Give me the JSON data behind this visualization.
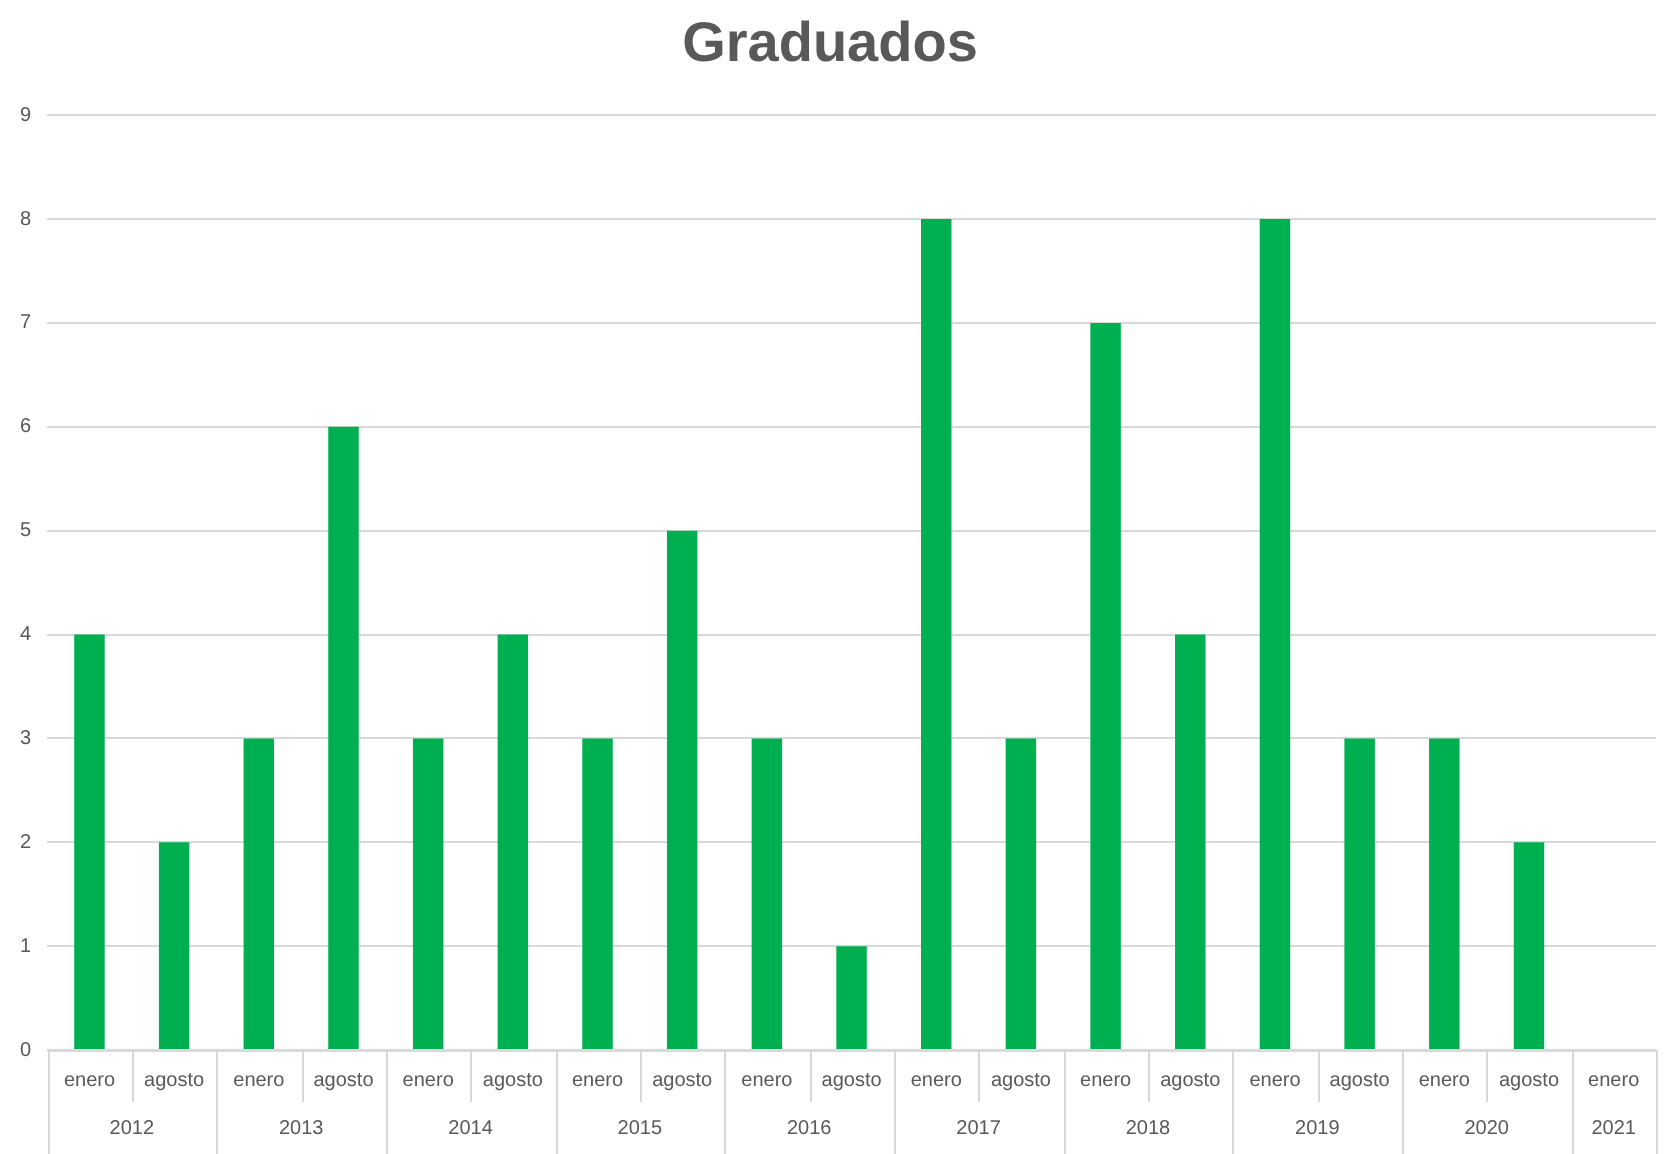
{
  "chart_data": {
    "type": "bar",
    "title": "Graduados",
    "categories": [
      "enero",
      "agosto",
      "enero",
      "agosto",
      "enero",
      "agosto",
      "enero",
      "agosto",
      "enero",
      "agosto",
      "enero",
      "agosto",
      "enero",
      "agosto",
      "enero",
      "agosto",
      "enero",
      "agosto",
      "enero"
    ],
    "values": [
      4,
      2,
      3,
      6,
      3,
      4,
      3,
      5,
      3,
      1,
      8,
      3,
      7,
      4,
      8,
      3,
      3,
      2,
      0
    ],
    "color": "#00b050",
    "ylim": [
      0,
      9
    ],
    "yticks": [
      0,
      1,
      2,
      3,
      4,
      5,
      6,
      7,
      8,
      9
    ],
    "grid": "y",
    "legend": false,
    "annotations": [
      "2012",
      "2013",
      "2014",
      "2015",
      "2016",
      "2017",
      "2018",
      "2019",
      "2020",
      "2021"
    ]
  }
}
